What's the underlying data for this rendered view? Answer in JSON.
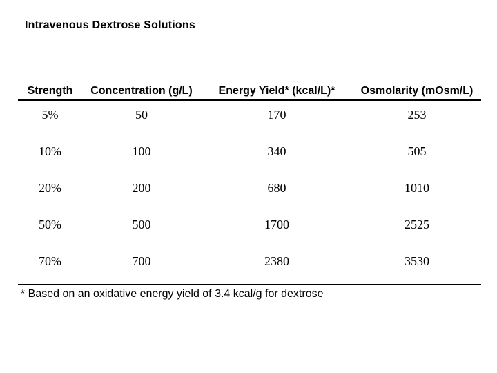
{
  "title": "Intravenous Dextrose Solutions",
  "table": {
    "columns": [
      "Strength",
      "Concentration (g/L)",
      "Energy Yield* (kcal/L)*",
      "Osmolarity (mOsm/L)"
    ],
    "rows": [
      [
        "5%",
        "50",
        "170",
        "253"
      ],
      [
        "10%",
        "100",
        "340",
        "505"
      ],
      [
        "20%",
        "200",
        "680",
        "1010"
      ],
      [
        "50%",
        "500",
        "1700",
        "2525"
      ],
      [
        "70%",
        "700",
        "2380",
        "3530"
      ]
    ]
  },
  "footnote": "* Based on an oxidative energy yield of 3.4 kcal/g for dextrose",
  "colors": {
    "background": "#ffffff",
    "text": "#000000",
    "rule": "#000000"
  },
  "chart_data": {
    "type": "table",
    "title": "Intravenous Dextrose Solutions",
    "columns": [
      "Strength",
      "Concentration (g/L)",
      "Energy Yield* (kcal/L)*",
      "Osmolarity (mOsm/L)"
    ],
    "rows": [
      [
        "5%",
        50,
        170,
        253
      ],
      [
        "10%",
        100,
        340,
        505
      ],
      [
        "20%",
        200,
        680,
        1010
      ],
      [
        "50%",
        500,
        1700,
        2525
      ],
      [
        "70%",
        700,
        2380,
        3530
      ]
    ],
    "footnote": "* Based on an oxidative energy yield of 3.4 kcal/g for dextrose"
  }
}
